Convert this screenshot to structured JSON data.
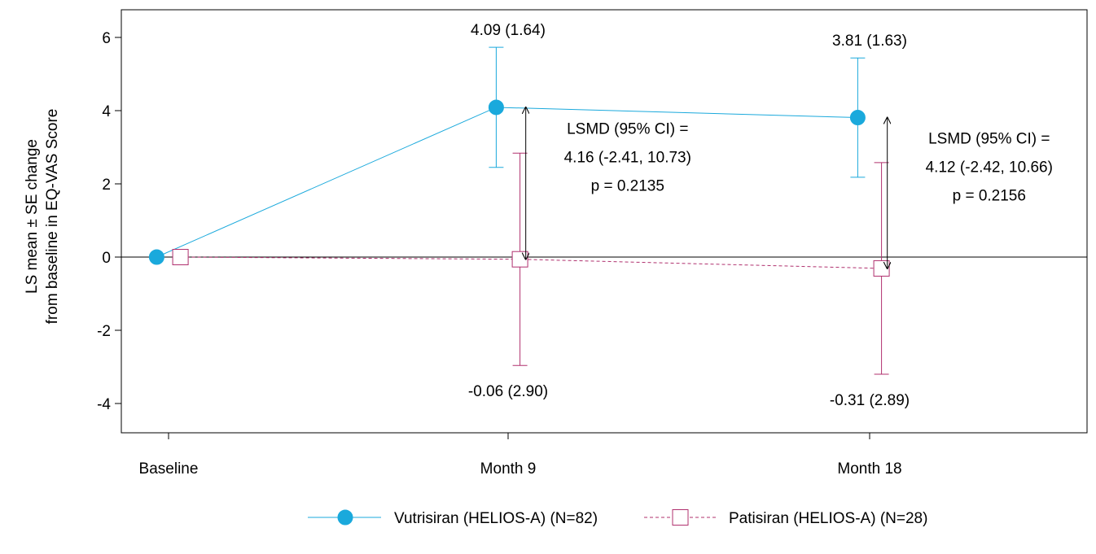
{
  "chart_data": {
    "type": "line",
    "categories": [
      "Baseline",
      "Month 9",
      "Month 18"
    ],
    "ylabel_lines": [
      "LS mean ± SE change",
      "from baseline in EQ-VAS Score"
    ],
    "ylim": [
      -5,
      6.8
    ],
    "yticks": [
      6,
      4,
      2,
      0,
      -2,
      -4
    ],
    "ytick_labels": [
      "6",
      "4",
      "2",
      "0",
      "-2",
      "-4"
    ],
    "reference_line_y": 0,
    "grid": false,
    "legend_position": "bottom-center",
    "series": [
      {
        "name": "Vutrisiran (HELIOS-A) (N=82)",
        "color": "#1aa9dc",
        "marker": "filled-circle",
        "line_style": "solid",
        "x_offset": -0.035,
        "values": [
          0,
          4.09,
          3.81
        ],
        "se": [
          0,
          1.64,
          1.63
        ],
        "point_labels": [
          "",
          "4.09 (1.64)",
          "3.81 (1.63)"
        ]
      },
      {
        "name": "Patisiran (HELIOS-A) (N=28)",
        "color": "#b0306e",
        "marker": "open-square",
        "line_style": "dashed",
        "x_offset": 0.035,
        "values": [
          0,
          -0.06,
          -0.31
        ],
        "se": [
          0,
          2.9,
          2.89
        ],
        "point_labels": [
          "",
          "-0.06 (2.90)",
          "-0.31 (2.89)"
        ]
      }
    ],
    "annotations": [
      {
        "category": "Month 9",
        "lines": [
          "LSMD (95% CI) =",
          "4.16 (-2.41, 10.73)",
          "p = 0.2135"
        ],
        "arrow_from": 4.09,
        "arrow_to": -0.06
      },
      {
        "category": "Month 18",
        "lines": [
          "LSMD (95% CI) =",
          "4.12 (-2.42, 10.66)",
          "p = 0.2156"
        ],
        "arrow_from": 3.81,
        "arrow_to": -0.31
      }
    ]
  }
}
